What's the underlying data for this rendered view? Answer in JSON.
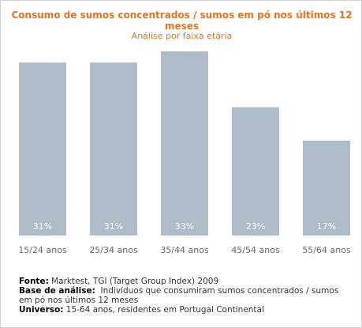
{
  "chart_data": {
    "type": "bar",
    "title": "Consumo de sumos concentrados / sumos em pó nos últimos 12 meses",
    "subtitle": "Análise por faixa etária",
    "categories": [
      "15/24 anos",
      "25/34 anos",
      "35/44 anos",
      "45/54 anos",
      "55/64 anos"
    ],
    "values": [
      31,
      31,
      33,
      23,
      17
    ],
    "value_labels": [
      "31%",
      "31%",
      "33%",
      "23%",
      "17%"
    ],
    "ylim": [
      0,
      33
    ],
    "grid": false,
    "bar_color": "#aebbc9"
  },
  "footer": {
    "fonte_label": "Fonte:",
    "fonte_text": "Marktest, TGI (Target Group Index) 2009",
    "base_label": "Base de análise:",
    "base_text": "Indivíduos que consumiram sumos concentrados / sumos em pó nos últimos 12 meses",
    "universo_label": "Universo:",
    "universo_text": "15-64 anos, residentes em Portugal Continental"
  },
  "colors": {
    "title": "#e8731e",
    "bar": "#aebbc9",
    "bar_label": "#ffffff",
    "category_label": "#666666"
  }
}
